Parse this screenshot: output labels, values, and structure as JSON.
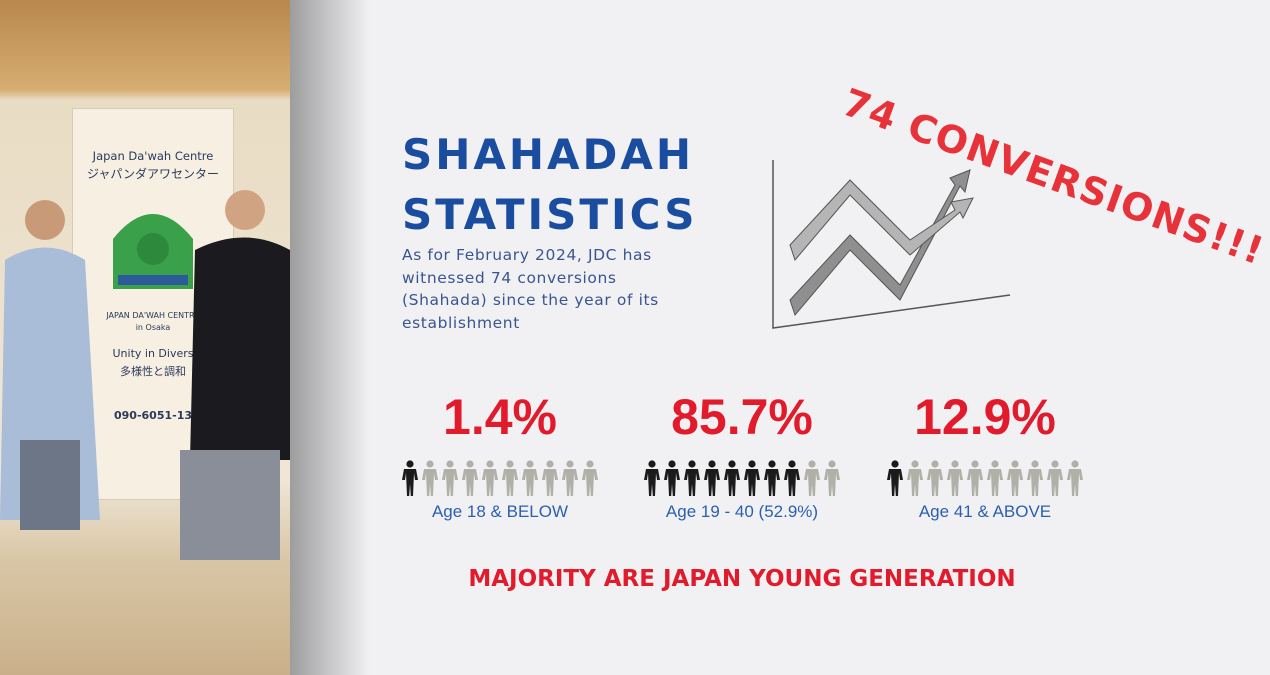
{
  "title_lines": [
    "SHAHADAH",
    "STATISTICS"
  ],
  "description_lines": [
    "As for February 2024, JDC has",
    "witnessed 74 conversions",
    "(Shahada) since the year of its",
    "establishment"
  ],
  "headline": "74 CONVERSIONS!!!",
  "stats": [
    {
      "percent": "1.4%",
      "label": "Age 18 & BELOW",
      "icons_filled": 1,
      "icons_total": 10
    },
    {
      "percent": "85.7%",
      "label": "Age 19 - 40 (52.9%)",
      "icons_filled": 8,
      "icons_total": 10
    },
    {
      "percent": "12.9%",
      "label": "Age 41 & ABOVE",
      "icons_filled": 1,
      "icons_total": 10
    }
  ],
  "footer": "MAJORITY ARE JAPAN YOUNG GENERATION",
  "photo": {
    "banner_lines": [
      "Japan Da'wah Centre",
      "ジャパンダアワセンター"
    ],
    "logo_text": "JAPAN DA'WAH CENTRE",
    "logo_sub": "in Osaka",
    "motto": "Unity in Divers",
    "motto_jp": "多様性と調和",
    "phone": "090-6051-13"
  }
}
